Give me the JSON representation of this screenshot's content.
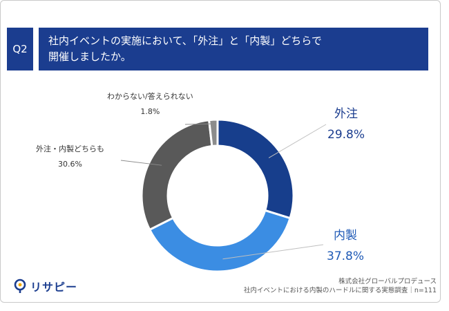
{
  "question": {
    "number": "Q2",
    "text_lines": [
      "社内イベントの実施において、「外注」と「内製」どちらで",
      "開催しましたか。"
    ]
  },
  "chart_data": {
    "type": "pie",
    "variant": "donut",
    "slices": [
      {
        "label": "外注",
        "value": 29.8,
        "value_label": "29.8%",
        "color": "#173e8c"
      },
      {
        "label": "内製",
        "value": 37.8,
        "value_label": "37.8%",
        "color": "#3b8de3"
      },
      {
        "label": "外注・内製どちらも",
        "value": 30.6,
        "value_label": "30.6%",
        "color": "#595959"
      },
      {
        "label": "わからない/答えられない",
        "value": 1.8,
        "value_label": "1.8%",
        "color": "#8c8c8c"
      }
    ]
  },
  "footer": {
    "logo_text": "リサピー",
    "logo_icon": "magnifier-icon",
    "company": "株式会社グローバルプロデュース",
    "survey": "社内イベントにおける内製のハードルに関する実態調査｜n=111"
  }
}
